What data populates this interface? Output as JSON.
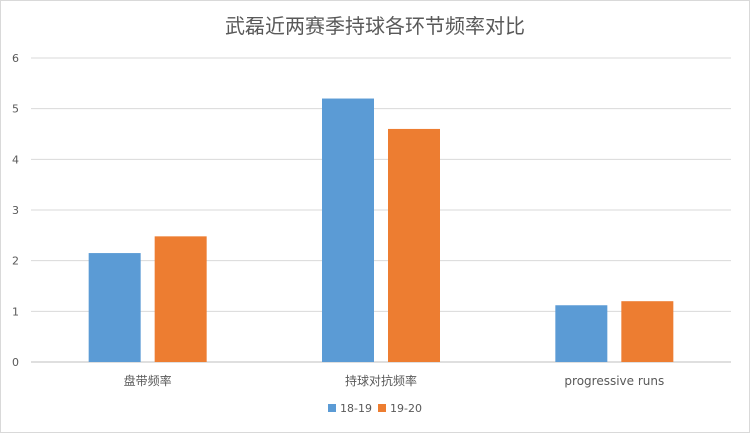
{
  "chart_data": {
    "type": "bar",
    "title": "武磊近两赛季持球各环节频率对比",
    "categories": [
      "盘带频率",
      "持球对抗频率",
      "progressive runs"
    ],
    "series": [
      {
        "name": "18-19",
        "values": [
          2.15,
          5.2,
          1.12
        ],
        "color": "#5b9bd5"
      },
      {
        "name": "19-20",
        "values": [
          2.48,
          4.6,
          1.2
        ],
        "color": "#ed7d31"
      }
    ],
    "yticks": [
      "0",
      "1",
      "2",
      "3",
      "4",
      "5",
      "6"
    ],
    "ylim": [
      0,
      6
    ],
    "grid": true,
    "legend_position": "bottom"
  }
}
